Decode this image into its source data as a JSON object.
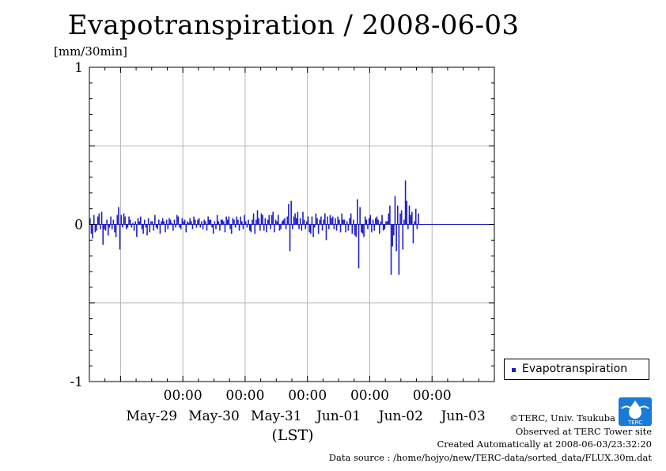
{
  "chart_data": {
    "type": "bar",
    "title": "Evapotranspiration / 2008-06-03",
    "ylabel": "[mm/30min]",
    "xlabel": "(LST)",
    "ylim": [
      -1,
      1
    ],
    "yticks": [
      "-1",
      "0",
      "1"
    ],
    "xlim": [
      "2008-05-28T12:00",
      "2008-06-04T00:00"
    ],
    "x_time_ticks": [
      "00:00",
      "00:00",
      "00:00",
      "00:00",
      "00:00"
    ],
    "x_date_ticks": [
      "May-29",
      "May-30",
      "May-31",
      "Jun-01",
      "Jun-02",
      "Jun-03"
    ],
    "grid": true,
    "legend_position": "outside-right-bottom",
    "series": [
      {
        "name": "Evapotranspiration",
        "color": "#1f1fc8",
        "start": "2008-05-28T12:00",
        "interval_minutes": 30,
        "values": [
          0.04,
          -0.06,
          -0.09,
          0.06,
          -0.05,
          -0.04,
          0.05,
          0.07,
          -0.03,
          0.08,
          -0.13,
          -0.03,
          -0.04,
          0.03,
          -0.07,
          -0.02,
          0.05,
          -0.03,
          0.03,
          -0.05,
          -0.08,
          0.06,
          0.11,
          -0.16,
          0.06,
          -0.02,
          0.07,
          0.05,
          -0.03,
          -0.02,
          0.05,
          0.03,
          -0.02,
          0.01,
          -0.04,
          0.02,
          -0.08,
          0.04,
          0.02,
          0.05,
          -0.03,
          -0.06,
          0.03,
          -0.02,
          -0.07,
          0.04,
          -0.05,
          0.02,
          0.02,
          -0.04,
          0.06,
          -0.02,
          -0.03,
          0.03,
          -0.06,
          0.02,
          0.04,
          0.02,
          -0.05,
          0.03,
          -0.03,
          0.04,
          0.03,
          0.01,
          -0.04,
          0.03,
          -0.02,
          0.06,
          0.05,
          -0.02,
          -0.03,
          0.04,
          0.02,
          0.03,
          -0.05,
          0.02,
          0.01,
          0.04,
          0.02,
          -0.03,
          0.05,
          0.03,
          -0.02,
          0.03,
          0.04,
          -0.02,
          0.02,
          -0.03,
          0.03,
          0.02,
          -0.04,
          0.05,
          0.03,
          0.03,
          -0.02,
          -0.06,
          0.02,
          -0.03,
          0.06,
          0.02,
          -0.04,
          0.03,
          0.03,
          0.02,
          -0.05,
          0.05,
          0.03,
          0.05,
          -0.03,
          -0.06,
          0.04,
          0.03,
          -0.02,
          0.05,
          0.03,
          -0.04,
          0.05,
          0.02,
          -0.03,
          0.06,
          0.02,
          -0.02,
          0.03,
          -0.04,
          -0.05,
          0.03,
          0.07,
          -0.06,
          0.03,
          0.09,
          0.04,
          -0.04,
          0.07,
          0.06,
          -0.04,
          0.04,
          -0.05,
          0.03,
          0.06,
          -0.03,
          0.06,
          0.08,
          -0.05,
          0.03,
          0.02,
          0.06,
          -0.04,
          -0.03,
          0.02,
          0.03,
          0.04,
          -0.03,
          0.05,
          0.13,
          -0.17,
          0.15,
          -0.03,
          0.05,
          0.07,
          0.04,
          0.08,
          -0.03,
          0.04,
          -0.04,
          0.08,
          0.03,
          -0.03,
          0.02,
          0.05,
          -0.05,
          -0.06,
          0.05,
          -0.08,
          -0.02,
          0.07,
          0.04,
          -0.06,
          0.03,
          0.05,
          -0.04,
          0.03,
          0.07,
          -0.1,
          0.05,
          -0.03,
          0.06,
          0.04,
          0.05,
          -0.03,
          0.04,
          -0.04,
          0.05,
          0.03,
          -0.05,
          0.07,
          0.03,
          0.03,
          -0.05,
          0.02,
          -0.04,
          0.04,
          0.07,
          -0.06,
          0.03,
          -0.07,
          -0.08,
          0.16,
          -0.28,
          0.11,
          -0.05,
          -0.06,
          -0.08,
          0.05,
          0.03,
          -0.03,
          0.04,
          0.06,
          -0.05,
          0.03,
          -0.04,
          0.04,
          0.05,
          0.03,
          -0.06,
          0.02,
          0.06,
          -0.04,
          -0.03,
          0.02,
          0.02,
          0.07,
          0.12,
          -0.32,
          -0.14,
          -0.07,
          0.18,
          -0.17,
          0.12,
          -0.32,
          0.07,
          0.09,
          -0.16,
          0.03,
          0.28,
          0.15,
          -0.03,
          0.12,
          0.06,
          0.08,
          -0.12,
          0.02,
          0.1,
          -0.03,
          0.07
        ]
      }
    ]
  },
  "credits": {
    "copyright": "©TERC, Univ. Tsukuba",
    "site": "Observed at TERC Tower site",
    "created": "Created Automatically at 2008-06-03/23:32:20",
    "source": "Data source : /home/hojyo/new/TERC-data/sorted_data/FLUX.30m.dat"
  },
  "logo": {
    "name": "terc-logo",
    "text": "TERC",
    "color": "#1a7ad8"
  }
}
